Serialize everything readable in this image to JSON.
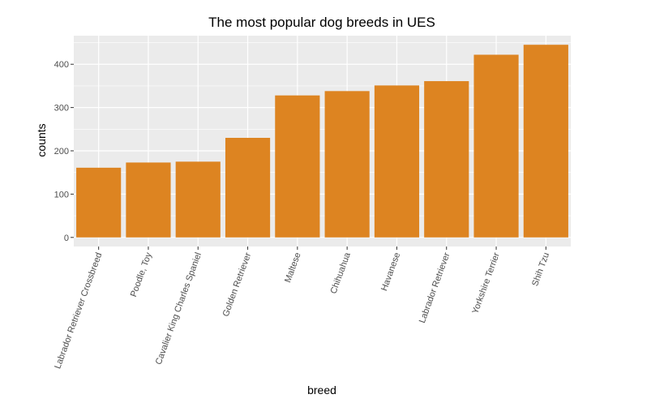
{
  "chart_data": {
    "type": "bar",
    "title": "The most popular dog breeds in UES",
    "xlabel": "breed",
    "ylabel": "counts",
    "categories": [
      "Labrador Retriever Crossbreed",
      "Poodle, Toy",
      "Cavalier King Charles Spaniel",
      "Golden Retriever",
      "Maltese",
      "Chihuahua",
      "Havanese",
      "Labrador Retriever",
      "Yorkshire Terrier",
      "Shih Tzu"
    ],
    "values": [
      161,
      173,
      175,
      230,
      328,
      338,
      351,
      361,
      422,
      445
    ],
    "ylim": [
      -21,
      466
    ],
    "yticks": [
      0,
      100,
      200,
      300,
      400
    ],
    "grid": true,
    "bar_color": "#DD8421",
    "panel_background": "#EBEBEB",
    "grid_color": "#FFFFFF"
  }
}
